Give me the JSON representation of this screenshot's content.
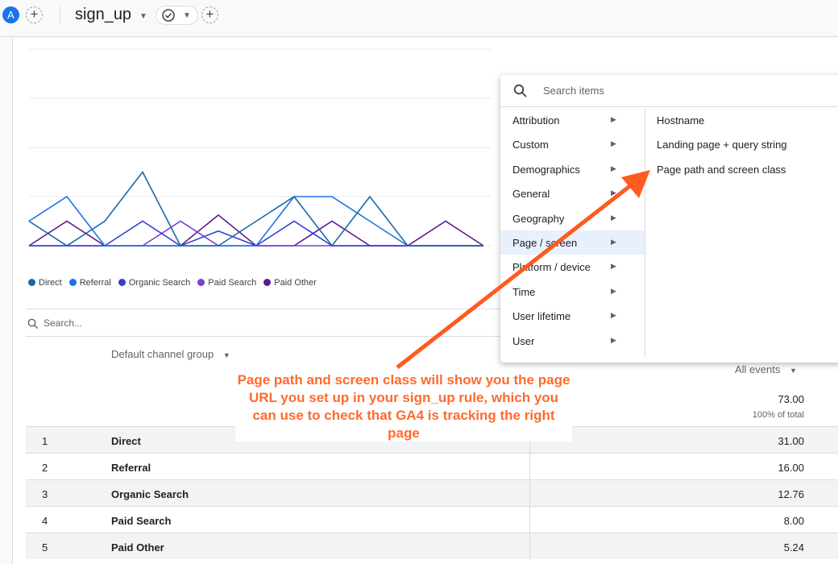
{
  "topbar": {
    "avatar": "A",
    "event": "sign_up",
    "add_icon": "+",
    "check_icon": "check-circle-icon"
  },
  "chart_data": {
    "type": "line",
    "ylim": [
      0,
      4
    ],
    "grid": true,
    "legend_placement": "bottom-left",
    "series": [
      {
        "name": "Direct",
        "color": "#1967a8",
        "values": [
          1,
          0,
          1,
          3,
          0,
          0,
          1,
          2,
          0,
          2,
          0,
          0,
          0
        ]
      },
      {
        "name": "Referral",
        "color": "#1a73e8",
        "values": [
          1,
          2,
          0,
          0,
          0,
          0,
          0,
          2,
          2,
          1,
          0,
          0,
          0
        ]
      },
      {
        "name": "Organic Search",
        "color": "#3240d8",
        "values": [
          0,
          0,
          0,
          1,
          0,
          0.6,
          0,
          1,
          0,
          0,
          0,
          0,
          0
        ]
      },
      {
        "name": "Paid Search",
        "color": "#7b3fd1",
        "values": [
          0,
          0,
          0,
          0,
          1,
          0,
          0,
          0,
          0,
          0,
          0,
          0,
          0
        ]
      },
      {
        "name": "Paid Other",
        "color": "#5c1a8e",
        "values": [
          0,
          1,
          0,
          0,
          0,
          1.25,
          0,
          0,
          1,
          0,
          0,
          1,
          0
        ]
      }
    ]
  },
  "table": {
    "search_placeholder": "Search...",
    "dimension_header": "Default channel group",
    "metric_header": "All events",
    "total": "73.00",
    "total_pct": "100% of total",
    "rows": [
      {
        "n": "1",
        "channel": "Direct",
        "value": "31.00"
      },
      {
        "n": "2",
        "channel": "Referral",
        "value": "16.00"
      },
      {
        "n": "3",
        "channel": "Organic Search",
        "value": "12.76"
      },
      {
        "n": "4",
        "channel": "Paid Search",
        "value": "8.00"
      },
      {
        "n": "5",
        "channel": "Paid Other",
        "value": "5.24"
      }
    ]
  },
  "menu": {
    "search_placeholder": "Search items",
    "categories": [
      "Attribution",
      "Custom",
      "Demographics",
      "General",
      "Geography",
      "Page / screen",
      "Platform / device",
      "Time",
      "User lifetime",
      "User"
    ],
    "selected": "Page / screen",
    "items": [
      "Hostname",
      "Landing page + query string",
      "Page path and screen class"
    ]
  },
  "annotation": {
    "text": "Page path and screen class will show you the page URL you set up in your sign_up rule, which you can use to check that GA4 is tracking the right page",
    "color": "#ff5a1f"
  }
}
